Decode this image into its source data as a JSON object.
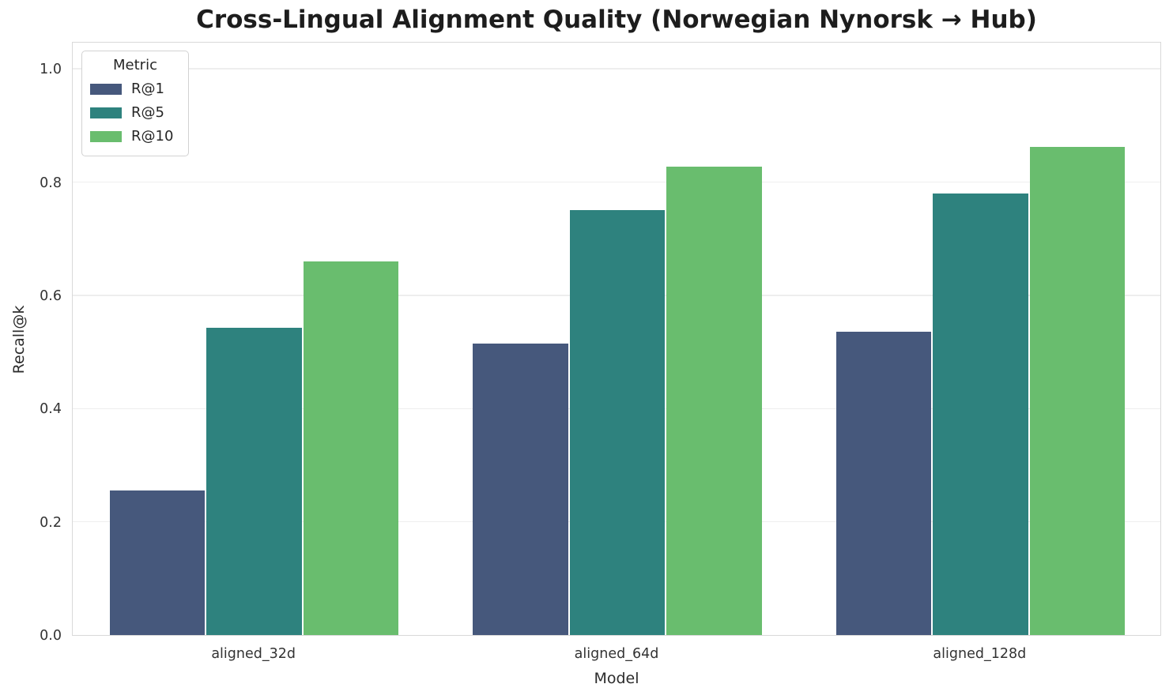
{
  "chart_data": {
    "type": "bar",
    "title": "Cross-Lingual Alignment Quality (Norwegian Nynorsk → Hub)",
    "xlabel": "Model",
    "ylabel": "Recall@k",
    "categories": [
      "aligned_32d",
      "aligned_64d",
      "aligned_128d"
    ],
    "series": [
      {
        "name": "R@1",
        "color": "#46587C",
        "values": [
          0.255,
          0.515,
          0.536
        ]
      },
      {
        "name": "R@5",
        "color": "#2E827E",
        "values": [
          0.542,
          0.75,
          0.78
        ]
      },
      {
        "name": "R@10",
        "color": "#69BD6E",
        "values": [
          0.66,
          0.827,
          0.862
        ]
      }
    ],
    "legend_title": "Metric",
    "legend_position": "upper left",
    "ylim": [
      0,
      1.049
    ],
    "yticks": [
      0.0,
      0.2,
      0.4,
      0.6,
      0.8,
      1.0
    ],
    "ytick_labels": [
      "0.0",
      "0.2",
      "0.4",
      "0.6",
      "0.8",
      "1.0"
    ],
    "grid": "horizontal",
    "colors": {
      "grid": "#eeeeee",
      "spine": "#d9d9d9",
      "tick_text": "#333333",
      "title_text": "#1d1d1d"
    }
  }
}
